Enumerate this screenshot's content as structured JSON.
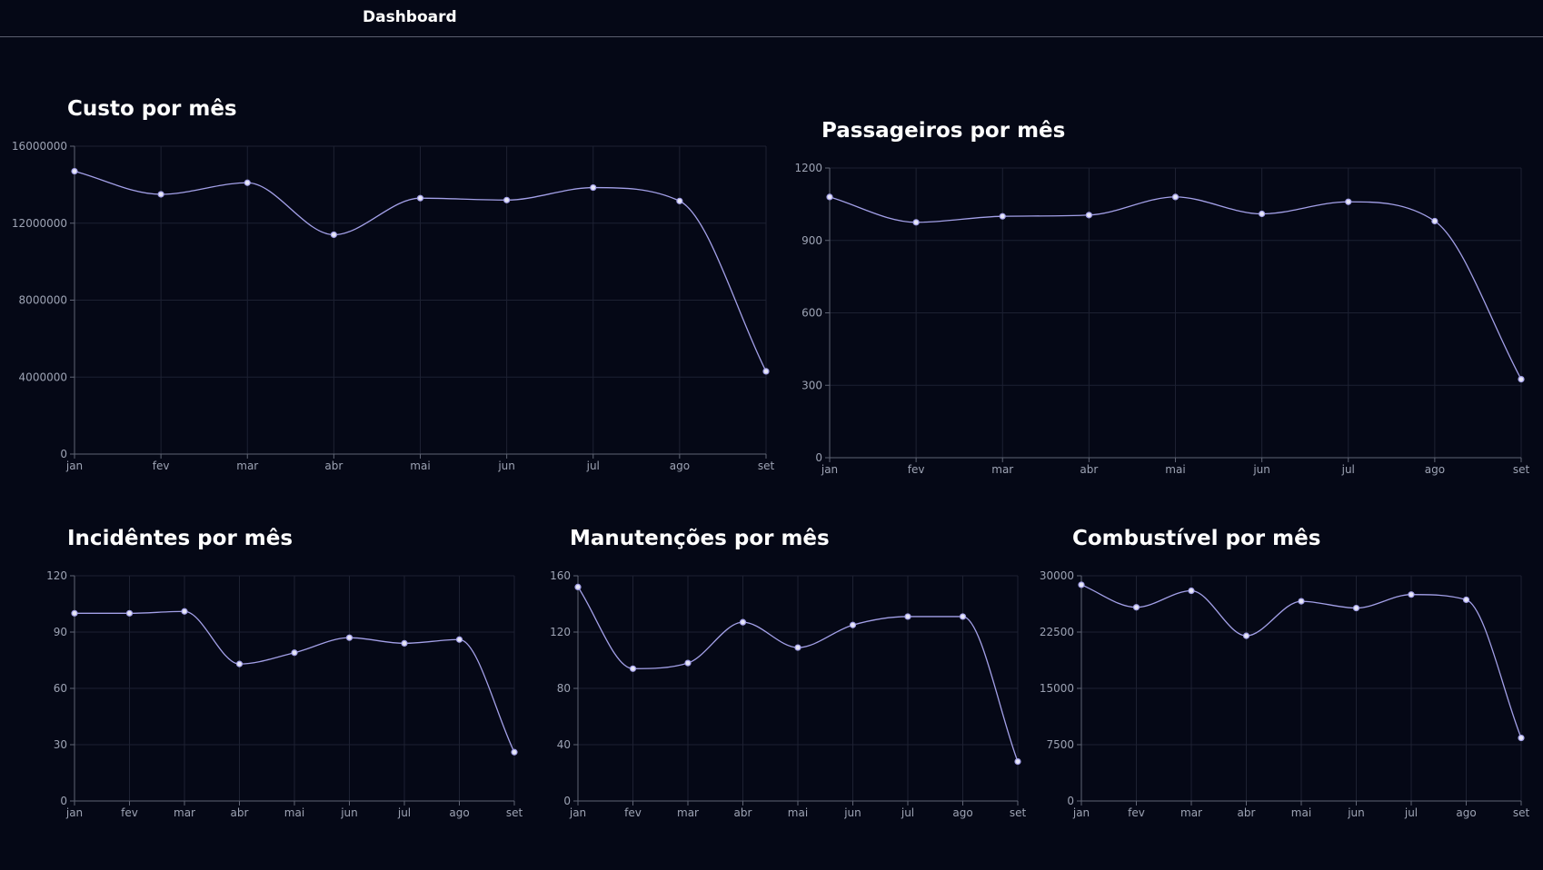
{
  "header": {
    "brand": "Dashboard"
  },
  "colors": {
    "background": "#050816",
    "line": "#a3a0e8",
    "point_fill": "#e6e6f5",
    "grid": "#1d2132",
    "axis": "#5f6474",
    "tick_text": "#9da3b4"
  },
  "charts": [
    {
      "title": "Custo por mês",
      "chart_data": {
        "type": "line",
        "categories": [
          "jan",
          "fev",
          "mar",
          "abr",
          "mai",
          "jun",
          "jul",
          "ago",
          "set"
        ],
        "values": [
          14700000,
          13500000,
          14100000,
          11400000,
          13300000,
          13200000,
          13850000,
          13150000,
          4300000
        ],
        "ylim": [
          0,
          16000000
        ],
        "yticks": [
          "0",
          "4000000",
          "8000000",
          "12000000",
          "16000000"
        ],
        "grid": true,
        "title": "Custo por mês"
      }
    },
    {
      "title": "Passageiros por mês",
      "chart_data": {
        "type": "line",
        "categories": [
          "jan",
          "fev",
          "mar",
          "abr",
          "mai",
          "jun",
          "jul",
          "ago",
          "set"
        ],
        "values": [
          1080,
          975,
          1000,
          1005,
          1080,
          1010,
          1060,
          980,
          325
        ],
        "ylim": [
          0,
          1200
        ],
        "yticks": [
          "0",
          "300",
          "600",
          "900",
          "1200"
        ],
        "grid": true,
        "title": "Passageiros por mês"
      }
    },
    {
      "title": "Incidêntes por mês",
      "chart_data": {
        "type": "line",
        "categories": [
          "jan",
          "fev",
          "mar",
          "abr",
          "mai",
          "jun",
          "jul",
          "ago",
          "set"
        ],
        "values": [
          100,
          100,
          101,
          73,
          79,
          87,
          84,
          86,
          26
        ],
        "ylim": [
          0,
          120
        ],
        "yticks": [
          "0",
          "30",
          "60",
          "90",
          "120"
        ],
        "grid": true,
        "title": "Incidêntes por mês"
      }
    },
    {
      "title": "Manutenções por mês",
      "chart_data": {
        "type": "line",
        "categories": [
          "jan",
          "fev",
          "mar",
          "abr",
          "mai",
          "jun",
          "jul",
          "ago",
          "set"
        ],
        "values": [
          152,
          94,
          98,
          127,
          109,
          125,
          131,
          131,
          28
        ],
        "ylim": [
          0,
          160
        ],
        "yticks": [
          "0",
          "40",
          "80",
          "120",
          "160"
        ],
        "grid": true,
        "title": "Manutenções por mês"
      }
    },
    {
      "title": "Combustível por mês",
      "chart_data": {
        "type": "line",
        "categories": [
          "jan",
          "fev",
          "mar",
          "abr",
          "mai",
          "jun",
          "jul",
          "ago",
          "set"
        ],
        "values": [
          28800,
          25800,
          28000,
          22000,
          26600,
          25700,
          27500,
          26800,
          8400
        ],
        "ylim": [
          0,
          30000
        ],
        "yticks": [
          "0",
          "7500",
          "15000",
          "22500",
          "30000"
        ],
        "grid": true,
        "title": "Combustível por mês"
      }
    }
  ]
}
